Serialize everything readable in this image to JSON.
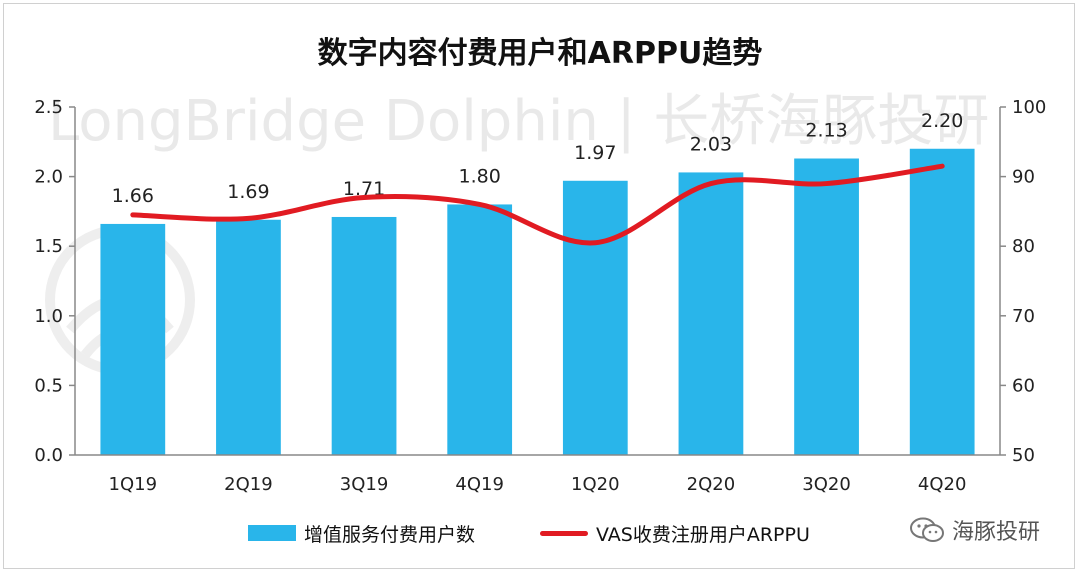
{
  "chart_data": {
    "type": "bar",
    "title": "数字内容付费用户和ARPPU趋势",
    "watermark": "LongBridge Dolphin | 长桥海豚投研",
    "categories": [
      "1Q19",
      "2Q19",
      "3Q19",
      "4Q19",
      "1Q20",
      "2Q20",
      "3Q20",
      "4Q20"
    ],
    "series": [
      {
        "name": "增值服务付费用户数",
        "type": "bar",
        "axis": "left",
        "color": "#29b5ea",
        "values": [
          1.66,
          1.69,
          1.71,
          1.8,
          1.97,
          2.03,
          2.13,
          2.2
        ],
        "labels": [
          "1.66",
          "1.69",
          "1.71",
          "1.80",
          "1.97",
          "2.03",
          "2.13",
          "2.20"
        ]
      },
      {
        "name": "VAS收费注册用户ARPPU",
        "type": "line",
        "axis": "right",
        "color": "#e11b22",
        "values": [
          84.5,
          84.0,
          87.0,
          86.0,
          80.5,
          89.0,
          89.0,
          91.5
        ]
      }
    ],
    "y_left": {
      "ylim": [
        0,
        2.5
      ],
      "ticks": [
        "0.0",
        "0.5",
        "1.0",
        "1.5",
        "2.0",
        "2.5"
      ]
    },
    "y_right": {
      "ylim": [
        50,
        100
      ],
      "ticks": [
        "50",
        "60",
        "70",
        "80",
        "90",
        "100"
      ]
    },
    "legend_position": "bottom",
    "grid": false
  },
  "brand": {
    "name": "海豚投研",
    "icon": "wechat-icon"
  }
}
